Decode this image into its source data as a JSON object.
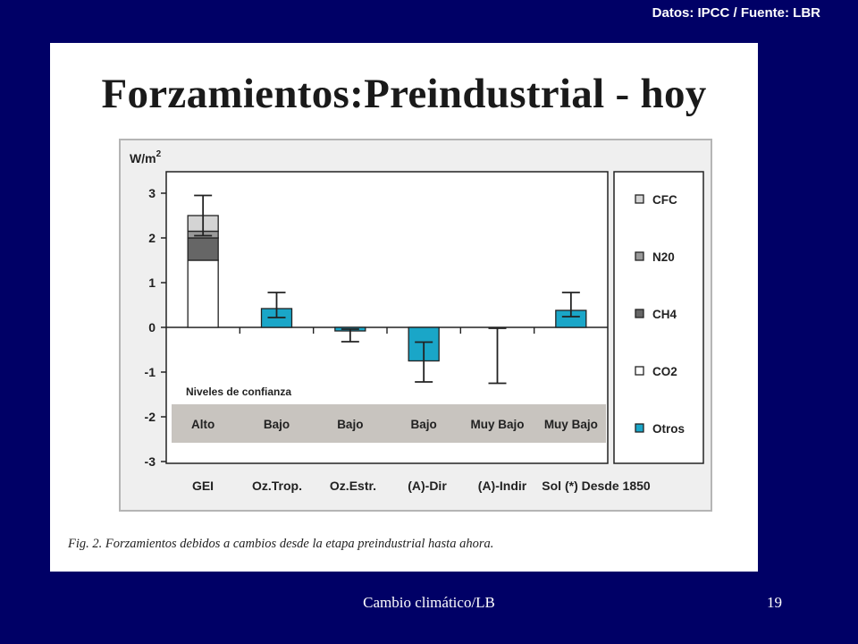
{
  "slide": {
    "source_note": "Datos: IPCC / Fuente: LBR",
    "footer_text": "Cambio climático/LB",
    "page_number": "19",
    "background_color": "#000066"
  },
  "figure": {
    "title": "Forzamientos:Preindustrial - hoy",
    "caption": "Fig. 2. Forzamientos debidos a cambios desde la etapa preindustrial hasta ahora."
  },
  "chart_data": {
    "type": "bar",
    "ylabel": "W/m",
    "ylabel_superscript": "2",
    "ylim": [
      -3,
      3
    ],
    "yticks": [
      3,
      2,
      1,
      0,
      -1,
      -2,
      -3
    ],
    "categories": [
      "GEI",
      "Oz.Trop.",
      "Oz.Estr.",
      "(A)-Dir",
      "(A)-Indir",
      "Sol (*) Desde 1850"
    ],
    "confidence_title": "Niveles de confianza",
    "confidence_levels": [
      "Alto",
      "Bajo",
      "Bajo",
      "Bajo",
      "Muy Bajo",
      "Muy Bajo"
    ],
    "stacked_bar": {
      "category": "GEI",
      "segments": [
        {
          "name": "CO2",
          "from": 0,
          "to": 1.5,
          "color": "#ffffff"
        },
        {
          "name": "CH4",
          "from": 1.5,
          "to": 2.0,
          "color": "#666666"
        },
        {
          "name": "N20",
          "from": 2.0,
          "to": 2.15,
          "color": "#999999"
        },
        {
          "name": "CFC",
          "from": 2.15,
          "to": 2.5,
          "color": "#d4d4d4"
        }
      ],
      "error": [
        2.05,
        2.95
      ]
    },
    "series": [
      {
        "name": "Otros",
        "color": "#1aa6c8",
        "values": [
          null,
          0.42,
          -0.08,
          -0.75,
          0,
          0.38
        ],
        "error_low": [
          null,
          0.22,
          -0.32,
          -1.22,
          -1.25,
          0.24
        ],
        "error_high": [
          null,
          0.78,
          -0.04,
          -0.33,
          -0.02,
          0.78
        ]
      }
    ],
    "legend": [
      {
        "name": "CFC",
        "color": "#d4d4d4"
      },
      {
        "name": "N20",
        "color": "#999999"
      },
      {
        "name": "CH4",
        "color": "#666666"
      },
      {
        "name": "CO2",
        "color": "#ffffff"
      },
      {
        "name": "Otros",
        "color": "#1aa6c8"
      }
    ],
    "legend_position": "right",
    "grid": false
  }
}
